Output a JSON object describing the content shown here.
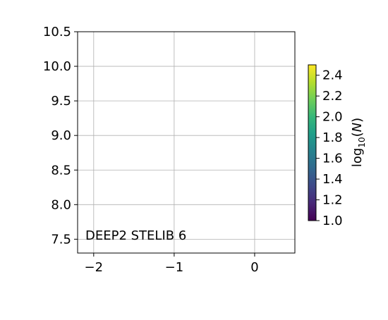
{
  "chart_data": {
    "type": "heatmap",
    "title": "",
    "xlabel": "",
    "ylabel": "",
    "xlim": [
      -2.2,
      0.5
    ],
    "ylim": [
      7.3,
      10.5
    ],
    "x_ticks": [
      -2,
      -1,
      0
    ],
    "x_tick_labels": [
      "−2",
      "−1",
      "0"
    ],
    "y_ticks": [
      7.5,
      8.0,
      8.5,
      9.0,
      9.5,
      10.0,
      10.5
    ],
    "y_tick_labels": [
      "7.5",
      "8.0",
      "8.5",
      "9.0",
      "9.5",
      "10.0",
      "10.5"
    ],
    "grid": true,
    "values": [],
    "annotation": "DEEP2 STELIB 6",
    "colorbar": {
      "label_main": "log",
      "label_sub": "10",
      "label_rest": "(N)",
      "label_var": "N",
      "colormap": "viridis",
      "range": [
        1.0,
        2.5
      ],
      "ticks": [
        1.0,
        1.2,
        1.4,
        1.6,
        1.8,
        2.0,
        2.2,
        2.4
      ],
      "tick_labels": [
        "1.0",
        "1.2",
        "1.4",
        "1.6",
        "1.8",
        "2.0",
        "2.2",
        "2.4"
      ],
      "colors": [
        "#440154",
        "#482878",
        "#3e4989",
        "#31688e",
        "#26828e",
        "#1f9e89",
        "#35b779",
        "#6ece58",
        "#b5de2b",
        "#fde725"
      ]
    }
  }
}
